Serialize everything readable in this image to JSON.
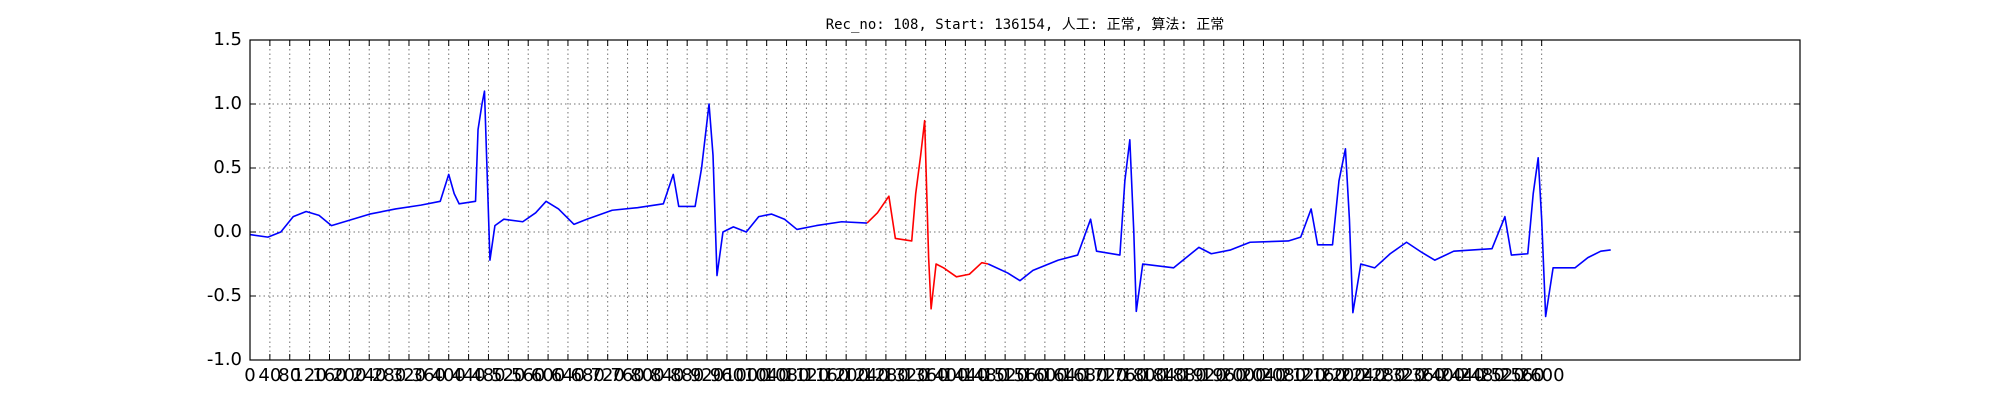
{
  "chart_data": {
    "type": "line",
    "title": "Rec_no: 108, Start: 136154, 人工: 正常, 算法: 正常",
    "xlim": [
      0,
      3120
    ],
    "xticks": [
      0,
      40,
      80,
      120,
      160,
      200,
      240,
      280,
      320,
      360,
      400,
      440,
      480,
      520,
      560,
      600,
      640,
      680,
      720,
      760,
      800,
      840,
      880,
      920,
      960,
      1000,
      1040,
      1080,
      1120,
      1160,
      1200,
      1240,
      1280,
      1320,
      1360,
      1400,
      1440,
      1480,
      1520,
      1560,
      1600,
      1640,
      1680,
      1720,
      1760,
      1800,
      1840,
      1880,
      1920,
      1960,
      2000,
      2040,
      2080,
      2120,
      2160,
      2200,
      2240,
      2280,
      2320,
      2360,
      2400,
      2440,
      2480,
      2520,
      2560,
      2600
    ],
    "ylim": [
      -1,
      1.5
    ],
    "yticks": [
      {
        "value": -1,
        "label": "-1.0"
      },
      -0.5,
      {
        "value": 0,
        "label": "0.0"
      },
      0.5,
      {
        "value": 1,
        "label": "1.0"
      },
      1.5
    ],
    "grid": true,
    "series": [
      {
        "color": "#0000ff",
        "x": [
          0,
          36,
          62,
          87,
          113,
          139,
          164,
          190,
          241,
          293,
          344,
          383,
          400,
          411,
          421,
          454,
          459,
          467,
          472,
          477,
          483,
          493,
          511,
          549,
          575,
          596,
          621,
          652,
          678,
          729,
          780,
          832,
          852,
          863,
          896,
          909,
          924,
          932,
          940,
          952,
          973,
          999,
          1024,
          1050,
          1076,
          1101,
          1140,
          1191,
          1242
        ],
        "values": [
          -0.02,
          -0.04,
          0.0,
          0.12,
          0.16,
          0.13,
          0.05,
          0.08,
          0.14,
          0.18,
          0.21,
          0.24,
          0.45,
          0.3,
          0.22,
          0.24,
          0.8,
          1.0,
          1.1,
          0.5,
          -0.22,
          0.05,
          0.1,
          0.08,
          0.15,
          0.24,
          0.18,
          0.06,
          0.1,
          0.17,
          0.19,
          0.22,
          0.45,
          0.2,
          0.2,
          0.5,
          1.0,
          0.6,
          -0.34,
          0.0,
          0.04,
          0.0,
          0.12,
          0.14,
          0.1,
          0.02,
          0.05,
          0.08,
          0.07
        ]
      },
      {
        "color": "#ff0000",
        "x": [
          1242,
          1263,
          1286,
          1299,
          1332,
          1340,
          1350,
          1358,
          1366,
          1371,
          1381,
          1396,
          1422,
          1448,
          1473,
          1486
        ],
        "values": [
          0.07,
          0.15,
          0.28,
          -0.05,
          -0.07,
          0.3,
          0.6,
          0.87,
          -0.2,
          -0.6,
          -0.25,
          -0.28,
          -0.35,
          -0.33,
          -0.24,
          -0.25
        ]
      },
      {
        "color": "#0000ff",
        "x": [
          1486,
          1525,
          1550,
          1576,
          1627,
          1666,
          1692,
          1704,
          1751,
          1761,
          1771,
          1779,
          1784,
          1797,
          1859,
          1910,
          1935,
          1974,
          2013,
          2090,
          2115,
          2136,
          2149,
          2179,
          2192,
          2205,
          2213,
          2220,
          2236,
          2264,
          2295,
          2328,
          2359,
          2385,
          2423,
          2500,
          2526,
          2539,
          2572,
          2583,
          2593,
          2600,
          2608,
          2623,
          2667,
          2693,
          2719,
          2739
        ],
        "values": [
          -0.25,
          -0.32,
          -0.38,
          -0.3,
          -0.22,
          -0.18,
          0.1,
          -0.15,
          -0.18,
          0.4,
          0.72,
          0.0,
          -0.62,
          -0.25,
          -0.28,
          -0.12,
          -0.17,
          -0.14,
          -0.08,
          -0.07,
          -0.04,
          0.18,
          -0.1,
          -0.1,
          0.4,
          0.65,
          0.1,
          -0.63,
          -0.25,
          -0.28,
          -0.17,
          -0.08,
          -0.16,
          -0.22,
          -0.15,
          -0.13,
          0.12,
          -0.18,
          -0.17,
          0.3,
          0.58,
          0.1,
          -0.66,
          -0.28,
          -0.28,
          -0.2,
          -0.15,
          -0.14
        ]
      }
    ]
  }
}
